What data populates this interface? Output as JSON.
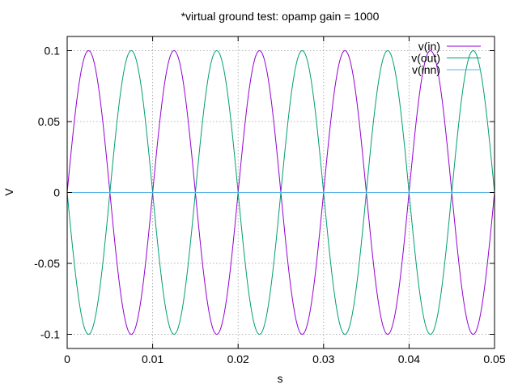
{
  "chart_data": {
    "type": "line",
    "title": "*virtual ground test: opamp gain = 1000",
    "xlabel": "s",
    "ylabel": "V",
    "xlim": [
      0,
      0.05
    ],
    "ylim": [
      -0.11,
      0.11
    ],
    "x_ticks": [
      0,
      0.01,
      0.02,
      0.03,
      0.04,
      0.05
    ],
    "x_tick_labels": [
      "0",
      "0.01",
      "0.02",
      "0.03",
      "0.04",
      "0.05"
    ],
    "y_ticks": [
      -0.1,
      -0.05,
      0,
      0.05,
      0.1
    ],
    "y_tick_labels": [
      "-0.1",
      "-0.05",
      "0",
      "0.05",
      "0.1"
    ],
    "grid": true,
    "legend_position": "top-right",
    "series": [
      {
        "name": "v(in)",
        "color": "#9400d3",
        "function": "sine",
        "amplitude": 0.1,
        "frequency_hz": 100,
        "phase_deg": 0,
        "x": [
          0,
          0.0025,
          0.005,
          0.0075,
          0.01,
          0.0125,
          0.015,
          0.0175,
          0.02,
          0.0225,
          0.025,
          0.0275,
          0.03,
          0.0325,
          0.035,
          0.0375,
          0.04,
          0.0425,
          0.045,
          0.0475,
          0.05
        ],
        "y": [
          0,
          0.1,
          0,
          -0.1,
          0,
          0.1,
          0,
          -0.1,
          0,
          0.1,
          0,
          -0.1,
          0,
          0.1,
          0,
          -0.1,
          0,
          0.1,
          0,
          -0.1,
          0
        ]
      },
      {
        "name": "v(out)",
        "color": "#009e73",
        "function": "sine",
        "amplitude": -0.1,
        "frequency_hz": 100,
        "phase_deg": 0,
        "x": [
          0,
          0.0025,
          0.005,
          0.0075,
          0.01,
          0.0125,
          0.015,
          0.0175,
          0.02,
          0.0225,
          0.025,
          0.0275,
          0.03,
          0.0325,
          0.035,
          0.0375,
          0.04,
          0.0425,
          0.045,
          0.0475,
          0.05
        ],
        "y": [
          0,
          -0.1,
          0,
          0.1,
          0,
          -0.1,
          0,
          0.1,
          0,
          -0.1,
          0,
          0.1,
          0,
          -0.1,
          0,
          0.1,
          0,
          -0.1,
          0,
          0.1,
          0
        ]
      },
      {
        "name": "v(inn)",
        "color": "#56b4e9",
        "function": "constant",
        "amplitude": 0,
        "frequency_hz": 100,
        "phase_deg": 0,
        "x": [
          0,
          0.05
        ],
        "y": [
          0,
          0
        ]
      }
    ]
  }
}
